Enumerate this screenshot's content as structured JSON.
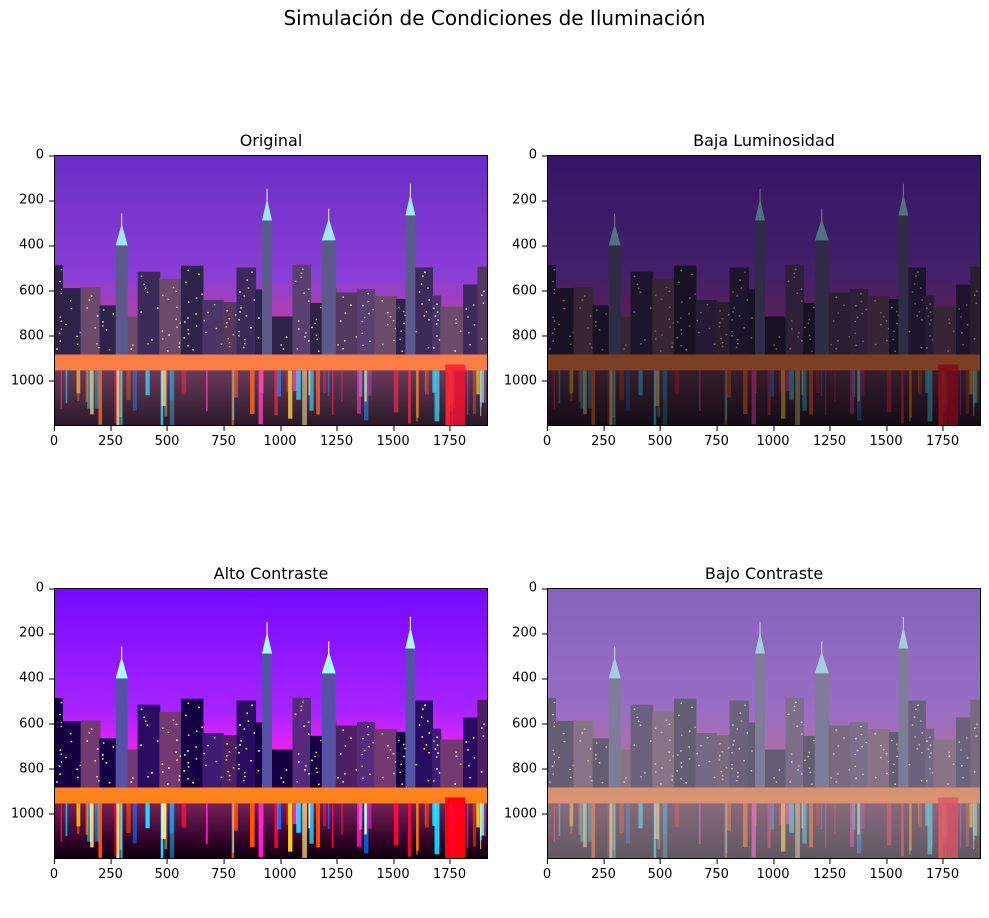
{
  "suptitle": "Simulación de Condiciones de Iluminación",
  "panels": [
    {
      "title": "Original",
      "filter": "none",
      "variant": "original"
    },
    {
      "title": "Baja Luminosidad",
      "filter": "brightness(0.5)",
      "variant": "low-brightness"
    },
    {
      "title": "Alto Contraste",
      "filter": "contrast(1.35) saturate(1.2) brightness(1.08)",
      "variant": "high-contrast"
    },
    {
      "title": "Bajo Contraste",
      "filter": "contrast(0.5) brightness(1.15)",
      "variant": "low-contrast"
    }
  ],
  "axis": {
    "x_ticks": [
      "0",
      "250",
      "500",
      "750",
      "1000",
      "1250",
      "1500",
      "1750"
    ],
    "x_values": [
      0,
      250,
      500,
      750,
      1000,
      1250,
      1500,
      1750
    ],
    "x_max": 1920,
    "y_ticks": [
      "0",
      "200",
      "400",
      "600",
      "800",
      "1000"
    ],
    "y_values": [
      0,
      200,
      400,
      600,
      800,
      1000
    ],
    "y_max": 1200
  },
  "image": {
    "subject": "night city skyline over water with reflections",
    "colors": {
      "sky_top": "#6a2cc7",
      "sky_mid": "#8a3fd6",
      "sky_horizon": "#e0407a",
      "water": "#2a1a2a"
    }
  }
}
